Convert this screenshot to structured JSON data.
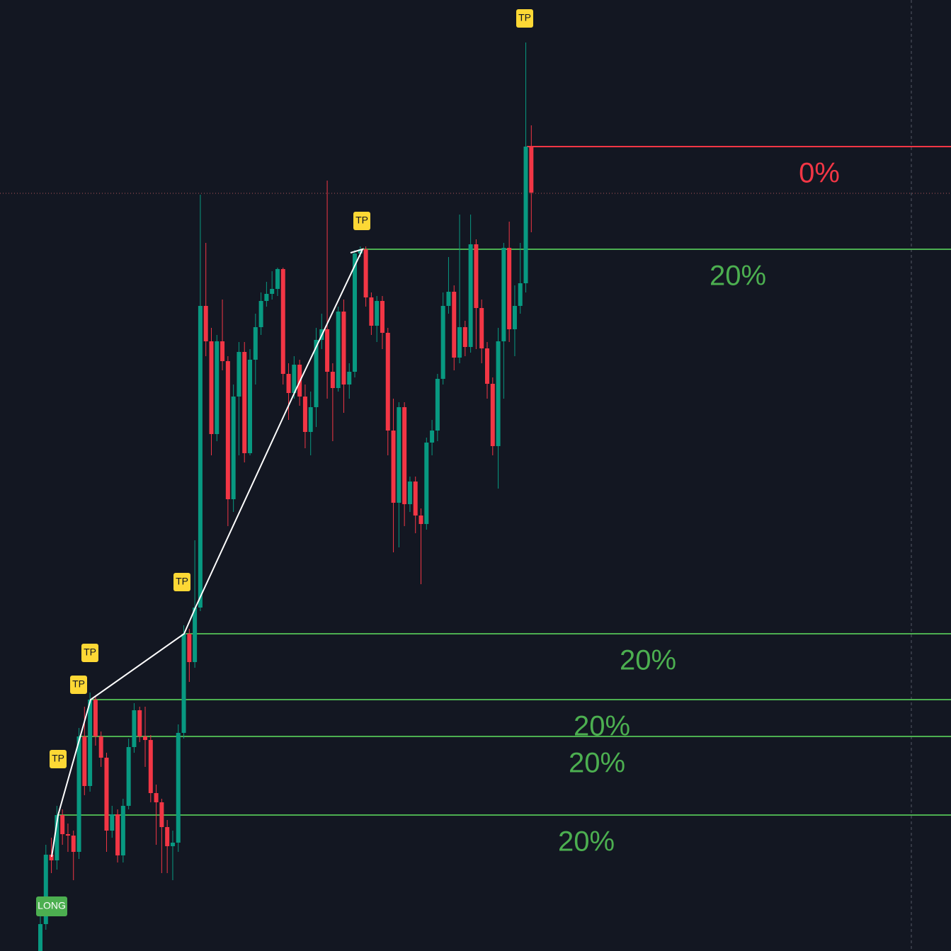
{
  "chart_data": {
    "type": "candlestick",
    "ylim": [
      0,
      1343
    ],
    "up_color": "#089981",
    "down_color": "#f23645",
    "open": [
      0,
      38,
      136,
      128,
      192,
      165,
      163,
      140,
      303,
      233,
      355,
      303,
      273,
      170,
      193,
      135,
      205,
      288,
      340,
      303,
      298,
      223,
      210,
      175,
      148,
      153,
      308,
      448,
      408,
      485,
      911,
      861,
      730,
      861,
      833,
      638,
      783,
      846,
      703,
      835,
      881,
      918,
      928,
      935,
      963,
      815,
      788,
      828,
      783,
      733,
      768,
      863,
      878,
      818,
      795,
      903,
      800,
      818,
      985,
      991,
      923,
      883,
      918,
      873,
      735,
      633,
      768,
      631,
      663,
      615,
      603,
      718,
      735,
      808,
      911,
      931,
      838,
      881,
      853,
      998,
      908,
      851,
      801,
      713,
      861,
      993,
      878,
      911,
      943,
      1136
    ],
    "high": [
      50,
      150,
      160,
      205,
      200,
      180,
      170,
      315,
      345,
      365,
      360,
      310,
      280,
      205,
      200,
      215,
      300,
      350,
      345,
      345,
      305,
      235,
      215,
      185,
      170,
      320,
      460,
      455,
      580,
      1068,
      1000,
      880,
      870,
      920,
      840,
      800,
      860,
      860,
      850,
      900,
      930,
      945,
      960,
      965,
      965,
      830,
      840,
      835,
      800,
      790,
      880,
      900,
      1088,
      830,
      910,
      920,
      830,
      990,
      995,
      995,
      930,
      925,
      925,
      880,
      780,
      775,
      775,
      670,
      670,
      625,
      725,
      750,
      815,
      930,
      980,
      940,
      1040,
      890,
      1040,
      1005,
      920,
      860,
      810,
      880,
      1000,
      1030,
      940,
      1000,
      1283,
      1166
    ],
    "low": [
      0,
      30,
      110,
      115,
      150,
      140,
      100,
      130,
      220,
      225,
      290,
      260,
      140,
      160,
      125,
      125,
      200,
      280,
      295,
      260,
      210,
      150,
      110,
      110,
      100,
      140,
      300,
      380,
      400,
      480,
      840,
      700,
      720,
      820,
      600,
      620,
      700,
      690,
      700,
      800,
      870,
      910,
      920,
      925,
      800,
      750,
      780,
      770,
      710,
      700,
      740,
      850,
      780,
      720,
      790,
      760,
      780,
      810,
      980,
      910,
      870,
      860,
      850,
      700,
      563,
      570,
      600,
      620,
      590,
      518,
      595,
      700,
      720,
      800,
      900,
      820,
      830,
      840,
      845,
      850,
      830,
      780,
      700,
      653,
      780,
      860,
      840,
      900,
      930,
      1015
    ],
    "close": [
      38,
      136,
      128,
      192,
      165,
      163,
      140,
      303,
      233,
      355,
      303,
      273,
      170,
      193,
      135,
      205,
      288,
      340,
      303,
      298,
      223,
      210,
      175,
      148,
      153,
      308,
      448,
      408,
      485,
      911,
      861,
      730,
      861,
      833,
      638,
      783,
      846,
      703,
      835,
      881,
      918,
      928,
      935,
      963,
      815,
      788,
      828,
      783,
      733,
      768,
      863,
      878,
      818,
      795,
      903,
      800,
      818,
      985,
      991,
      923,
      883,
      918,
      873,
      735,
      633,
      768,
      631,
      663,
      615,
      603,
      718,
      735,
      808,
      911,
      931,
      838,
      881,
      853,
      998,
      908,
      851,
      801,
      713,
      861,
      993,
      878,
      911,
      943,
      1136,
      1071
    ],
    "levels": [
      {
        "label": "0%",
        "value": 1136,
        "color": "#f23645"
      },
      {
        "label": "20%",
        "value": 991,
        "color": "#4caf50"
      },
      {
        "label": "20%",
        "value": 448,
        "color": "#4caf50"
      },
      {
        "label": "20%",
        "value": 355,
        "color": "#4caf50"
      },
      {
        "label": "20%",
        "value": 303,
        "color": "#4caf50"
      },
      {
        "label": "20%",
        "value": 192,
        "color": "#4caf50"
      }
    ],
    "annotations": [
      "TP",
      "TP",
      "TP",
      "TP",
      "TP",
      "TP",
      "LONG"
    ]
  }
}
